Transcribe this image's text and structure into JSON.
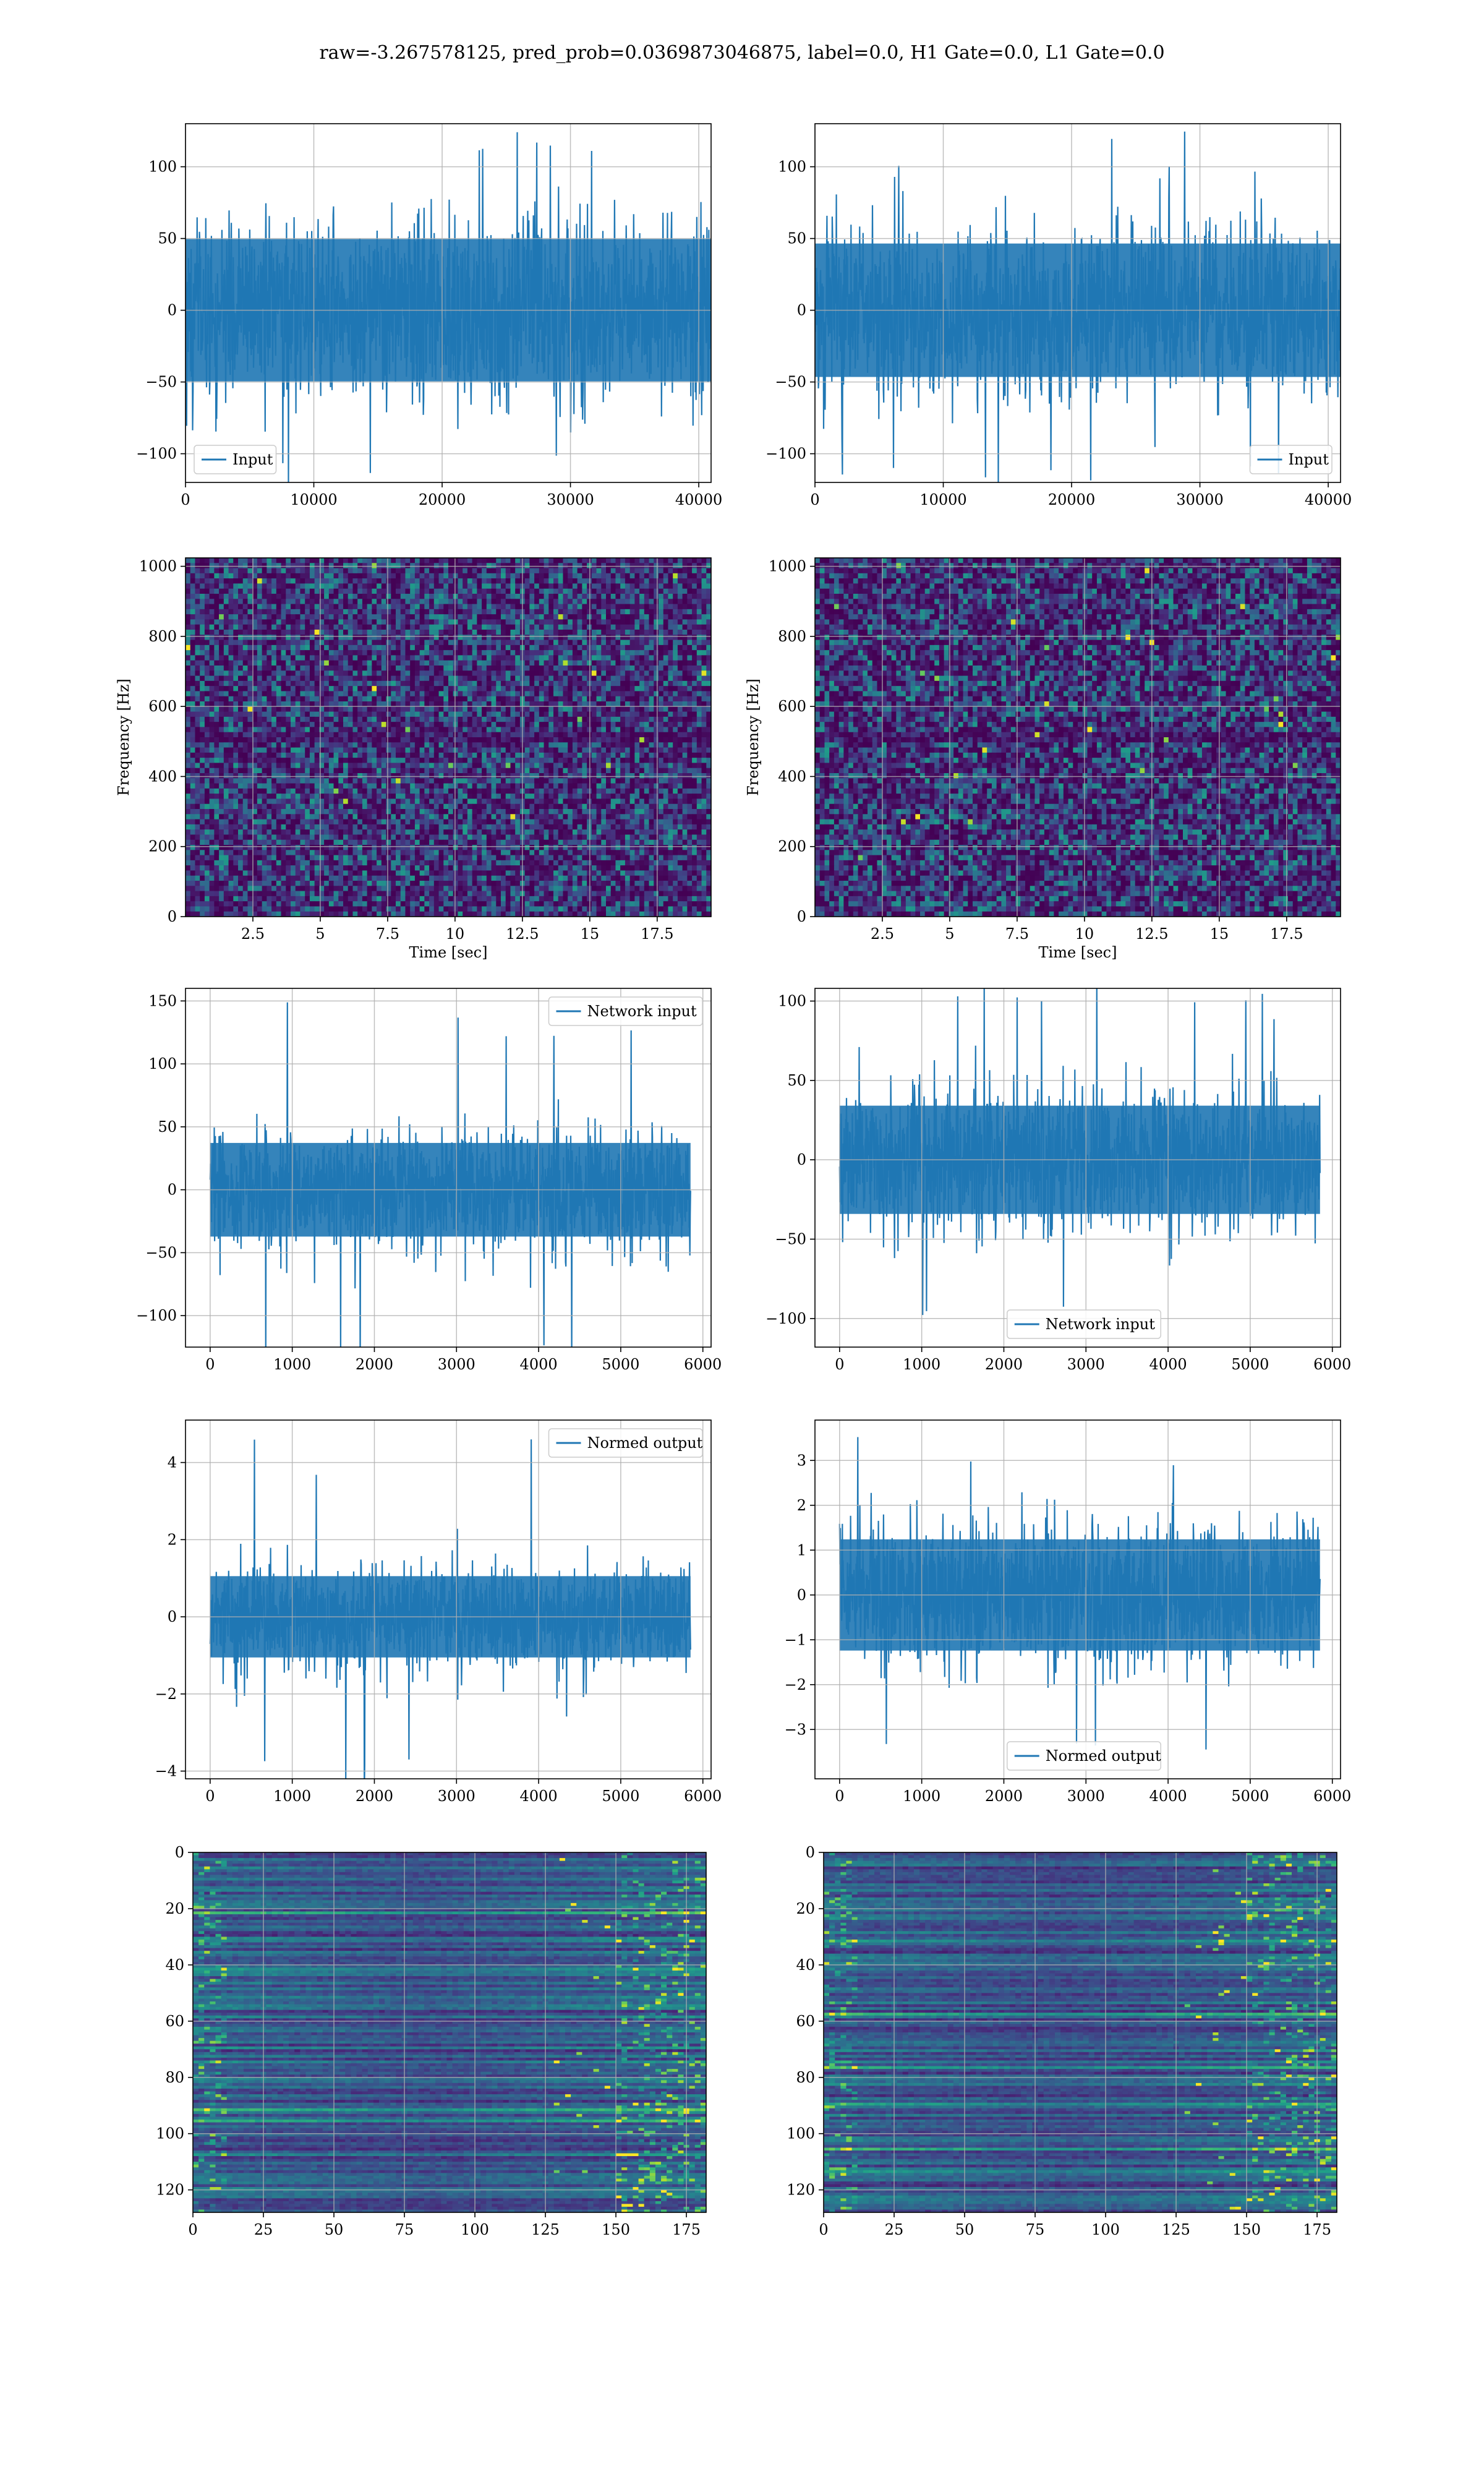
{
  "figure": {
    "suptitle": "raw=-3.267578125, pred_prob=0.0369873046875, label=0.0, H1 Gate=0.0, L1 Gate=0.0"
  },
  "colors": {
    "line": "#1f77b4",
    "grid": "#b0b0b0",
    "viridis": [
      "#440154",
      "#482878",
      "#3e4989",
      "#31688e",
      "#26828e",
      "#1f9e89",
      "#35b779",
      "#6ece58",
      "#b5de2b",
      "#fde725"
    ]
  },
  "chart_data": [
    {
      "id": "h1-input",
      "type": "line",
      "xlabel": "",
      "ylabel": "",
      "series": [
        {
          "name": "Input",
          "x_range": [
            0,
            40960
          ],
          "amplitude_typical": 80,
          "amplitude_peak": 125
        }
      ],
      "xlim": [
        0,
        40960
      ],
      "ylim": [
        -120,
        130
      ],
      "xticks": [
        0,
        10000,
        20000,
        30000,
        40000
      ],
      "yticks": [
        -100,
        -50,
        0,
        50,
        100
      ],
      "legend": "lower left",
      "grid": true
    },
    {
      "id": "l1-input",
      "type": "line",
      "xlabel": "",
      "ylabel": "",
      "series": [
        {
          "name": "Input",
          "x_range": [
            0,
            40960
          ],
          "amplitude_typical": 75,
          "amplitude_peak": 125
        }
      ],
      "xlim": [
        0,
        40960
      ],
      "ylim": [
        -120,
        130
      ],
      "xticks": [
        0,
        10000,
        20000,
        30000,
        40000
      ],
      "yticks": [
        -100,
        -50,
        0,
        50,
        100
      ],
      "legend": "lower right",
      "grid": true
    },
    {
      "id": "h1-spectrogram",
      "type": "heatmap",
      "xlabel": "Time [sec]",
      "ylabel": "Frequency [Hz]",
      "xlim": [
        0,
        19.5
      ],
      "ylim": [
        0,
        1024
      ],
      "xticks": [
        2.5,
        5.0,
        7.5,
        10.0,
        12.5,
        15.0,
        17.5
      ],
      "yticks": [
        0,
        200,
        400,
        600,
        800,
        1000
      ],
      "colormap": "viridis",
      "grid": true
    },
    {
      "id": "l1-spectrogram",
      "type": "heatmap",
      "xlabel": "Time [sec]",
      "ylabel": "Frequency [Hz]",
      "xlim": [
        0,
        19.5
      ],
      "ylim": [
        0,
        1024
      ],
      "xticks": [
        2.5,
        5.0,
        7.5,
        10.0,
        12.5,
        15.0,
        17.5
      ],
      "yticks": [
        0,
        200,
        400,
        600,
        800,
        1000
      ],
      "colormap": "viridis",
      "grid": true
    },
    {
      "id": "h1-network-input",
      "type": "line",
      "xlabel": "",
      "ylabel": "",
      "series": [
        {
          "name": "Network input",
          "x_range": [
            0,
            5850
          ],
          "amplitude_typical": 60,
          "amplitude_peak": 150
        }
      ],
      "xlim": [
        -300,
        6100
      ],
      "ylim": [
        -125,
        160
      ],
      "xticks": [
        0,
        1000,
        2000,
        3000,
        4000,
        5000,
        6000
      ],
      "yticks": [
        -100,
        -50,
        0,
        50,
        100,
        150
      ],
      "legend": "upper right",
      "grid": true
    },
    {
      "id": "l1-network-input",
      "type": "line",
      "xlabel": "",
      "ylabel": "",
      "series": [
        {
          "name": "Network input",
          "x_range": [
            0,
            5850
          ],
          "amplitude_typical": 55,
          "amplitude_peak": 110
        }
      ],
      "xlim": [
        -300,
        6100
      ],
      "ylim": [
        -118,
        108
      ],
      "xticks": [
        0,
        1000,
        2000,
        3000,
        4000,
        5000,
        6000
      ],
      "yticks": [
        -100,
        -50,
        0,
        50,
        100
      ],
      "legend": "lower center",
      "grid": true
    },
    {
      "id": "h1-normed-output",
      "type": "line",
      "xlabel": "",
      "ylabel": "",
      "series": [
        {
          "name": "Normed output",
          "x_range": [
            0,
            5850
          ],
          "amplitude_typical": 1.7,
          "amplitude_peak": 4.6
        }
      ],
      "xlim": [
        -300,
        6100
      ],
      "ylim": [
        -4.2,
        5.1
      ],
      "xticks": [
        0,
        1000,
        2000,
        3000,
        4000,
        5000,
        6000
      ],
      "yticks": [
        -4,
        -2,
        0,
        2,
        4
      ],
      "legend": "upper right",
      "grid": true
    },
    {
      "id": "l1-normed-output",
      "type": "line",
      "xlabel": "",
      "ylabel": "",
      "series": [
        {
          "name": "Normed output",
          "x_range": [
            0,
            5850
          ],
          "amplitude_typical": 2.0,
          "amplitude_peak": 3.6
        }
      ],
      "xlim": [
        -300,
        6100
      ],
      "ylim": [
        -4.1,
        3.9
      ],
      "xticks": [
        0,
        1000,
        2000,
        3000,
        4000,
        5000,
        6000
      ],
      "yticks": [
        -3,
        -2,
        -1,
        0,
        1,
        2,
        3
      ],
      "legend": "lower center",
      "grid": true
    },
    {
      "id": "h1-feature-map",
      "type": "heatmap",
      "xlabel": "",
      "ylabel": "",
      "xlim": [
        0,
        182
      ],
      "ylim": [
        128,
        0
      ],
      "rows": 128,
      "cols": 182,
      "xticks": [
        0,
        25,
        50,
        75,
        100,
        125,
        150,
        175
      ],
      "yticks": [
        0,
        20,
        40,
        60,
        80,
        100,
        120
      ],
      "colormap": "viridis",
      "grid": true
    },
    {
      "id": "l1-feature-map",
      "type": "heatmap",
      "xlabel": "",
      "ylabel": "",
      "xlim": [
        0,
        182
      ],
      "ylim": [
        128,
        0
      ],
      "rows": 128,
      "cols": 182,
      "xticks": [
        0,
        25,
        50,
        75,
        100,
        125,
        150,
        175
      ],
      "yticks": [
        0,
        20,
        40,
        60,
        80,
        100,
        120
      ],
      "colormap": "viridis",
      "grid": true
    }
  ]
}
